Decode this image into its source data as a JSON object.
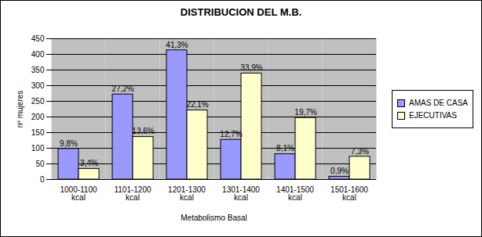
{
  "chart_data": {
    "type": "bar",
    "title": "DISTRIBUCION DEL M.B.",
    "x_label": "Metabolismo Basal",
    "y_label": "nº mujeres",
    "categories": [
      "1000-1100 kcal",
      "1101-1200 kcal",
      "1201-1300 kcal",
      "1301-1400 kcal",
      "1401-1500 kcal",
      "1501-1600 kcal"
    ],
    "series": [
      {
        "name": "AMAS DE CASA",
        "color": "#9999ff",
        "values": [
          98,
          272,
          413,
          127,
          81,
          9
        ],
        "value_labels": [
          "9,8%",
          "27,2%",
          "41,3%",
          "12,7%",
          "8,1%",
          "0,9%"
        ]
      },
      {
        "name": "EJECUTIVAS",
        "color": "#ffffcc",
        "values": [
          34,
          136,
          221,
          339,
          197,
          73
        ],
        "value_labels": [
          "3,4%",
          "13,6%",
          "22,1%",
          "33,9%",
          "19,7%",
          "7,3%"
        ]
      }
    ],
    "ylim": [
      0,
      450
    ],
    "yticks": [
      0,
      50,
      100,
      150,
      200,
      250,
      300,
      350,
      400,
      450
    ],
    "grid": true,
    "legend": "right",
    "data_labels": true
  }
}
